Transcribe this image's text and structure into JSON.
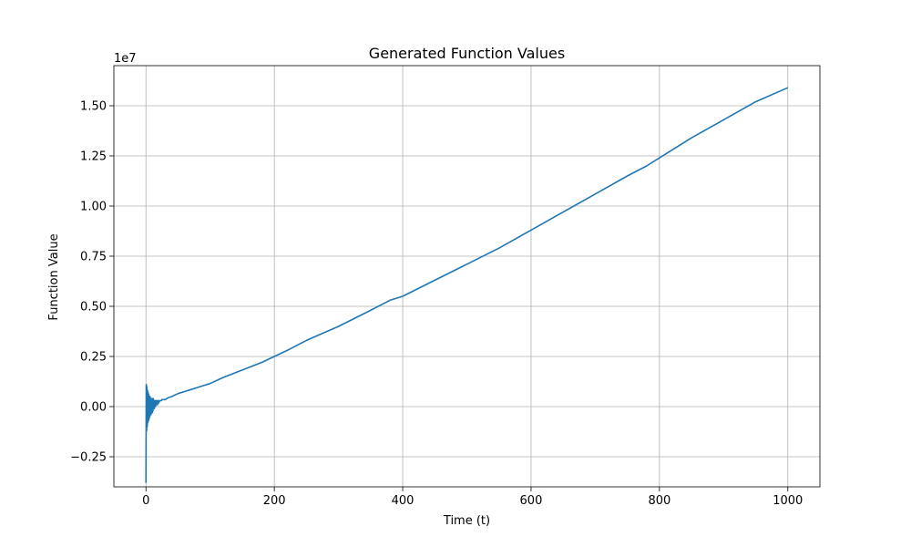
{
  "chart_data": {
    "type": "line",
    "title": "Generated Function Values",
    "xlabel": "Time (t)",
    "ylabel": "Function Value",
    "y_offset_label": "1e7",
    "xlim": [
      -50,
      1050
    ],
    "ylim": [
      -0.4,
      1.7
    ],
    "y_scale_multiplier": 10000000,
    "x_ticks": [
      0,
      200,
      400,
      600,
      800,
      1000
    ],
    "x_tick_labels": [
      "0",
      "200",
      "400",
      "600",
      "800",
      "1000"
    ],
    "y_ticks": [
      -0.25,
      0.0,
      0.25,
      0.5,
      0.75,
      1.0,
      1.25,
      1.5
    ],
    "y_tick_labels": [
      "−0.25",
      "0.00",
      "0.25",
      "0.50",
      "0.75",
      "1.00",
      "1.25",
      "1.50"
    ],
    "grid": true,
    "series": [
      {
        "color": "#1f77b4",
        "x": [
          0,
          0.5,
          1,
          1.5,
          2,
          2.5,
          3,
          3.5,
          4,
          4.5,
          5,
          5.5,
          6,
          6.5,
          7,
          7.5,
          8,
          8.5,
          9,
          9.5,
          10,
          10.5,
          11,
          11.5,
          12,
          12.5,
          13,
          13.5,
          14,
          14.5,
          15,
          15.5,
          16,
          16.5,
          17,
          17.5,
          18,
          18.5,
          19,
          19.5,
          20,
          20.5,
          21,
          22,
          23,
          24,
          25,
          26,
          28,
          30,
          35,
          40,
          50,
          60,
          70,
          80,
          90,
          100,
          120,
          140,
          160,
          180,
          200,
          220,
          250,
          300,
          350,
          380,
          400,
          450,
          500,
          550,
          600,
          650,
          700,
          750,
          780,
          800,
          850,
          900,
          950,
          1000
        ],
        "y": [
          -0.38,
          0.11,
          -0.12,
          0.1,
          -0.1,
          0.08,
          -0.08,
          0.07,
          -0.07,
          0.06,
          -0.06,
          0.05,
          -0.05,
          0.05,
          -0.04,
          0.04,
          -0.04,
          0.04,
          -0.03,
          0.04,
          -0.03,
          0.04,
          -0.02,
          0.04,
          -0.01,
          0.03,
          -0.01,
          0.03,
          0.0,
          0.03,
          0.0,
          0.03,
          0.01,
          0.03,
          0.01,
          0.03,
          0.01,
          0.03,
          0.015,
          0.03,
          0.02,
          0.03,
          0.025,
          0.03,
          0.03,
          0.03,
          0.035,
          0.035,
          0.035,
          0.035,
          0.045,
          0.05,
          0.065,
          0.075,
          0.085,
          0.095,
          0.105,
          0.115,
          0.145,
          0.17,
          0.195,
          0.22,
          0.25,
          0.28,
          0.33,
          0.4,
          0.48,
          0.53,
          0.55,
          0.63,
          0.71,
          0.79,
          0.88,
          0.97,
          1.06,
          1.15,
          1.2,
          1.24,
          1.34,
          1.43,
          1.52,
          1.59
        ]
      }
    ]
  }
}
